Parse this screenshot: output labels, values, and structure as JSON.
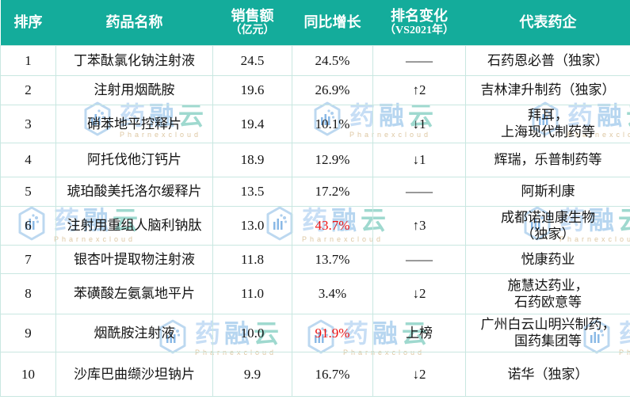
{
  "chart_data": {
    "type": "table",
    "columns": [
      "排序",
      "药品名称",
      "销售额（亿元）",
      "同比增长",
      "排名变化（VS2021年）",
      "代表药企"
    ],
    "rows": [
      [
        "1",
        "丁苯酞氯化钠注射液",
        "24.5",
        "24.5%",
        "——",
        "石药恩必普（独家）"
      ],
      [
        "2",
        "注射用烟酰胺",
        "19.6",
        "26.9%",
        "↑2",
        "吉林津升制药（独家）"
      ],
      [
        "3",
        "硝苯地平控释片",
        "19.4",
        "10.1%",
        "↓1",
        "拜耳，上海现代制药等"
      ],
      [
        "4",
        "阿托伐他汀钙片",
        "18.9",
        "12.9%",
        "↓1",
        "辉瑞，乐普制药等"
      ],
      [
        "5",
        "琥珀酸美托洛尔缓释片",
        "13.5",
        "17.2%",
        "——",
        "阿斯利康"
      ],
      [
        "6",
        "注射用重组人脑利钠肽",
        "13.0",
        "43.7%",
        "↑3",
        "成都诺迪康生物（独家）"
      ],
      [
        "7",
        "银杏叶提取物注射液",
        "11.8",
        "13.7%",
        "——",
        "悦康药业"
      ],
      [
        "8",
        "苯磺酸左氨氯地平片",
        "11.0",
        "3.4%",
        "↓2",
        "施慧达药业，石药欧意等"
      ],
      [
        "9",
        "烟酰胺注射液",
        "10.0",
        "91.9%",
        "上榜",
        "广州白云山明兴制药，国药集团等"
      ],
      [
        "10",
        "沙库巴曲缬沙坦钠片",
        "9.9",
        "16.7%",
        "↓2",
        "诺华（独家）"
      ]
    ]
  },
  "header": {
    "rank": "排序",
    "drug": "药品名称",
    "sales_main": "销售额",
    "sales_sub": "（亿元）",
    "growth": "同比增长",
    "change_main": "排名变化",
    "change_sub": "（VS2021年）",
    "company": "代表药企"
  },
  "rows": [
    {
      "rank": "1",
      "drug": "丁苯酞氯化钠注射液",
      "sales": "24.5",
      "growth": "24.5%",
      "red": false,
      "change": "——",
      "company": [
        "石药恩必普（独家）"
      ]
    },
    {
      "rank": "2",
      "drug": "注射用烟酰胺",
      "sales": "19.6",
      "growth": "26.9%",
      "red": false,
      "change": "↑2",
      "company": [
        "吉林津升制药（独家）"
      ]
    },
    {
      "rank": "3",
      "drug": "硝苯地平控释片",
      "sales": "19.4",
      "growth": "10.1%",
      "red": false,
      "change": "↓1",
      "company": [
        "拜耳，",
        "上海现代制药等"
      ]
    },
    {
      "rank": "4",
      "drug": "阿托伐他汀钙片",
      "sales": "18.9",
      "growth": "12.9%",
      "red": false,
      "change": "↓1",
      "company": [
        "辉瑞，乐普制药等"
      ]
    },
    {
      "rank": "5",
      "drug": "琥珀酸美托洛尔缓释片",
      "sales": "13.5",
      "growth": "17.2%",
      "red": false,
      "change": "——",
      "company": [
        "阿斯利康"
      ]
    },
    {
      "rank": "6",
      "drug": "注射用重组人脑利钠肽",
      "sales": "13.0",
      "growth": "43.7%",
      "red": true,
      "change": "↑3",
      "company": [
        "成都诺迪康生物",
        "（独家）"
      ]
    },
    {
      "rank": "7",
      "drug": "银杏叶提取物注射液",
      "sales": "11.8",
      "growth": "13.7%",
      "red": false,
      "change": "——",
      "company": [
        "悦康药业"
      ]
    },
    {
      "rank": "8",
      "drug": "苯磺酸左氨氯地平片",
      "sales": "11.0",
      "growth": "3.4%",
      "red": false,
      "change": "↓2",
      "company": [
        "施慧达药业，",
        "石药欧意等"
      ]
    },
    {
      "rank": "9",
      "drug": "烟酰胺注射液",
      "sales": "10.0",
      "growth": "91.9%",
      "red": true,
      "change": "上榜",
      "company": [
        "广州白云山明兴制药，",
        "国药集团等"
      ]
    },
    {
      "rank": "10",
      "drug": "沙库巴曲缬沙坦钠片",
      "sales": "9.9",
      "growth": "16.7%",
      "red": false,
      "change": "↓2",
      "company": [
        "诺华（独家）"
      ]
    }
  ],
  "watermark": {
    "cn": "药融云",
    "en": "Pharnexcloud"
  },
  "colors": {
    "header_bg": "#14ac9b",
    "border": "#c9e7e1",
    "red_text": "#ee1313",
    "body_text": "#141414",
    "wm_blue": "#b7d6f0",
    "wm_teal": "#9fd9cf"
  }
}
